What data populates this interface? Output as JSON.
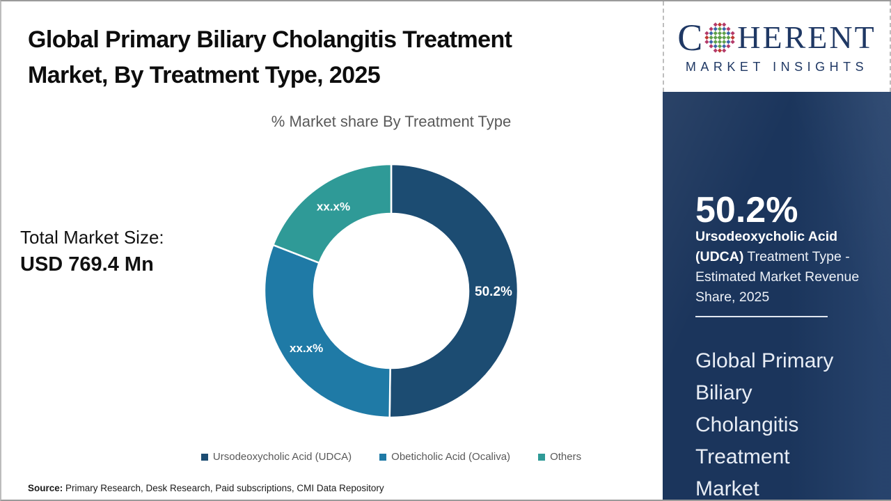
{
  "header": {
    "title_line1": "Global Primary Biliary Cholangitis Treatment",
    "title_line2": "Market, By Treatment Type, 2025"
  },
  "total_market": {
    "label": "Total Market Size:",
    "value": "USD 769.4 Mn"
  },
  "chart_data": {
    "type": "pie",
    "subtype": "donut",
    "title": "% Market share By Treatment Type",
    "categories": [
      "Ursodeoxycholic Acid (UDCA)",
      "Obeticholic Acid (Ocaliva)",
      "Others"
    ],
    "values": [
      50.2,
      30.7,
      19.1
    ],
    "display_labels": [
      "50.2%",
      "xx.x%",
      "xx.x%"
    ],
    "colors": [
      "#1c4c72",
      "#1f7aa6",
      "#2f9a97"
    ],
    "start_angle_deg": 0,
    "direction": "clockwise",
    "donut_hole_ratio": 0.61,
    "legend_position": "bottom",
    "label_color": "#ffffff"
  },
  "source": {
    "label": "Source:",
    "text": " Primary Research, Desk Research, Paid subscriptions, CMI Data Repository"
  },
  "sidebar": {
    "logo": {
      "word_start": "C",
      "word_end": "HERENT",
      "subtitle": "MARKET INSIGHTS",
      "brand_color": "#1f3864",
      "globe_icon": "dotted-globe"
    },
    "stat": {
      "value": "50.2%",
      "bold_text": "Ursodeoxycholic Acid (UDCA)",
      "rest_text": "  Treatment Type - Estimated Market Revenue Share, 2025"
    },
    "market_title_lines": [
      "Global Primary",
      "Biliary",
      "Cholangitis",
      "Treatment",
      "Market"
    ],
    "panel_color": "#1e3b66"
  }
}
